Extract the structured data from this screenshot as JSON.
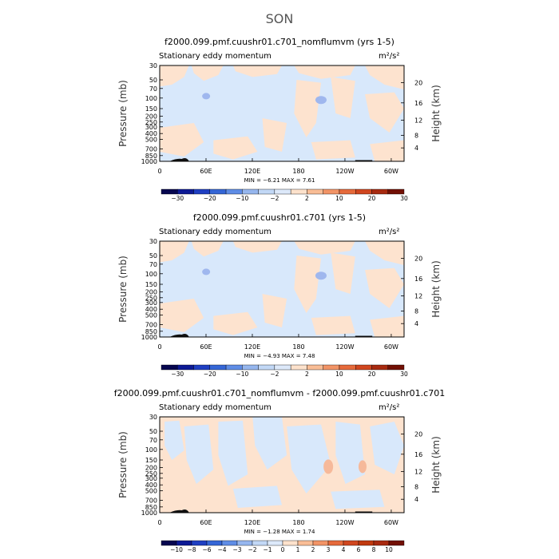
{
  "figure_title": "SON",
  "chart_data": [
    {
      "type": "heatmap",
      "title": "f2000.099.pmf.cuushr01.c701_nomflumvm (yrs 1-5)",
      "subtitle_left": "Stationary eddy momentum",
      "units": "m²/s²",
      "ylabel": "Pressure (mb)",
      "ylabel_right": "Height (km)",
      "y_ticks": [
        "30",
        "50",
        "70",
        "100",
        "150",
        "200",
        "250",
        "300",
        "400",
        "500",
        "700",
        "850",
        "1000"
      ],
      "y_right_ticks": [
        "20",
        "16",
        "12",
        "8",
        "4"
      ],
      "x_ticks": [
        "0",
        "60E",
        "120E",
        "180",
        "120W",
        "60W"
      ],
      "stats_text": "MIN =   −6.21   MAX =    7.61",
      "min": -6.21,
      "max": 7.61,
      "colorbar_labels": [
        "−30",
        "−20",
        "−10",
        "−2",
        "2",
        "10",
        "20",
        "30"
      ],
      "colorbar_colors": [
        "#06064f",
        "#0d1a95",
        "#1f3fc2",
        "#3566d6",
        "#5f8de6",
        "#96b6ee",
        "#c2d8f6",
        "#dde9fa",
        "#fde2cc",
        "#f9bd96",
        "#f29466",
        "#e66a3b",
        "#d0461f",
        "#a82a10",
        "#721004"
      ]
    },
    {
      "type": "heatmap",
      "title": "f2000.099.pmf.cuushr01.c701 (yrs 1-5)",
      "subtitle_left": "Stationary eddy momentum",
      "units": "m²/s²",
      "ylabel": "Pressure (mb)",
      "ylabel_right": "Height (km)",
      "y_ticks": [
        "30",
        "50",
        "70",
        "100",
        "150",
        "200",
        "250",
        "300",
        "400",
        "500",
        "700",
        "850",
        "1000"
      ],
      "y_right_ticks": [
        "20",
        "16",
        "12",
        "8",
        "4"
      ],
      "x_ticks": [
        "0",
        "60E",
        "120E",
        "180",
        "120W",
        "60W"
      ],
      "stats_text": "MIN =   −4.93   MAX =    7.48",
      "min": -4.93,
      "max": 7.48,
      "colorbar_labels": [
        "−30",
        "−20",
        "−10",
        "−2",
        "2",
        "10",
        "20",
        "30"
      ],
      "colorbar_colors": [
        "#06064f",
        "#0d1a95",
        "#1f3fc2",
        "#3566d6",
        "#5f8de6",
        "#96b6ee",
        "#c2d8f6",
        "#dde9fa",
        "#fde2cc",
        "#f9bd96",
        "#f29466",
        "#e66a3b",
        "#d0461f",
        "#a82a10",
        "#721004"
      ]
    },
    {
      "type": "heatmap",
      "title": "f2000.099.pmf.cuushr01.c701_nomflumvm - f2000.099.pmf.cuushr01.c701",
      "subtitle_left": "Stationary eddy momentum",
      "units": "m²/s²",
      "ylabel": "Pressure (mb)",
      "ylabel_right": "Height (km)",
      "y_ticks": [
        "30",
        "50",
        "70",
        "100",
        "150",
        "200",
        "250",
        "300",
        "400",
        "500",
        "700",
        "850",
        "1000"
      ],
      "y_right_ticks": [
        "20",
        "16",
        "12",
        "8",
        "4"
      ],
      "x_ticks": [
        "0",
        "60E",
        "120E",
        "180",
        "120W",
        "60W"
      ],
      "stats_text": "MIN =   −1.28   MAX =    1.74",
      "min": -1.28,
      "max": 1.74,
      "colorbar_labels": [
        "−10",
        "−8",
        "−6",
        "−4",
        "−3",
        "−2",
        "−1",
        "0",
        "1",
        "2",
        "3",
        "4",
        "6",
        "8",
        "10"
      ],
      "colorbar_colors": [
        "#06064f",
        "#0d1a95",
        "#1f3fc2",
        "#3566d6",
        "#5f8de6",
        "#96b6ee",
        "#c2d8f6",
        "#dde9fa",
        "#fde2cc",
        "#f9bd96",
        "#f29466",
        "#e66a3b",
        "#d0461f",
        "#c0390f",
        "#a82a10",
        "#721004"
      ]
    }
  ]
}
